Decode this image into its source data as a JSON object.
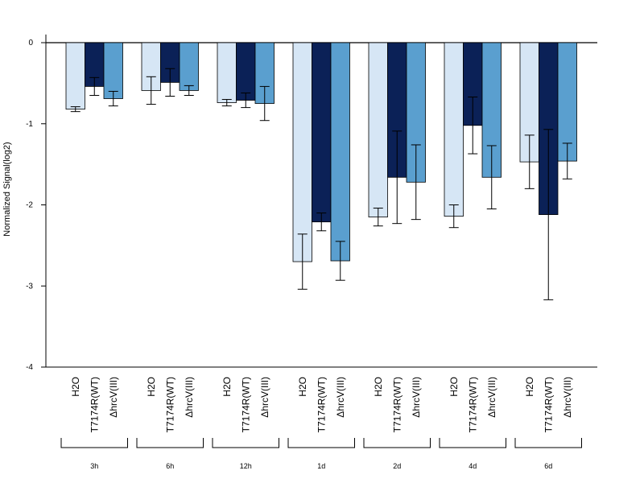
{
  "chart_data": {
    "type": "bar",
    "title": "",
    "xlabel": "",
    "ylabel": "Normalized Signal(log2)",
    "ylim": [
      -4,
      0.1
    ],
    "yticks": [
      0,
      -1,
      -2,
      -3,
      -4
    ],
    "groups": [
      "3h",
      "6h",
      "12h",
      "1d",
      "2d",
      "4d",
      "6d"
    ],
    "series": [
      {
        "name": "H2O",
        "color": "#d6e6f5",
        "values": [
          -0.82,
          -0.59,
          -0.74,
          -2.7,
          -2.15,
          -2.14,
          -1.47
        ],
        "error": [
          0.03,
          0.17,
          0.04,
          0.34,
          0.11,
          0.14,
          0.33
        ]
      },
      {
        "name": "T7174R(WT)",
        "color": "#0b2157",
        "values": [
          -0.54,
          -0.49,
          -0.71,
          -2.21,
          -1.66,
          -1.02,
          -2.12
        ],
        "error": [
          0.11,
          0.17,
          0.09,
          0.11,
          0.57,
          0.35,
          1.05
        ]
      },
      {
        "name": "ΔhrcV(III)",
        "color": "#5a9fcf",
        "values": [
          -0.69,
          -0.59,
          -0.75,
          -2.69,
          -1.72,
          -1.66,
          -1.46
        ],
        "error": [
          0.09,
          0.06,
          0.21,
          0.24,
          0.46,
          0.39,
          0.22
        ]
      }
    ]
  }
}
